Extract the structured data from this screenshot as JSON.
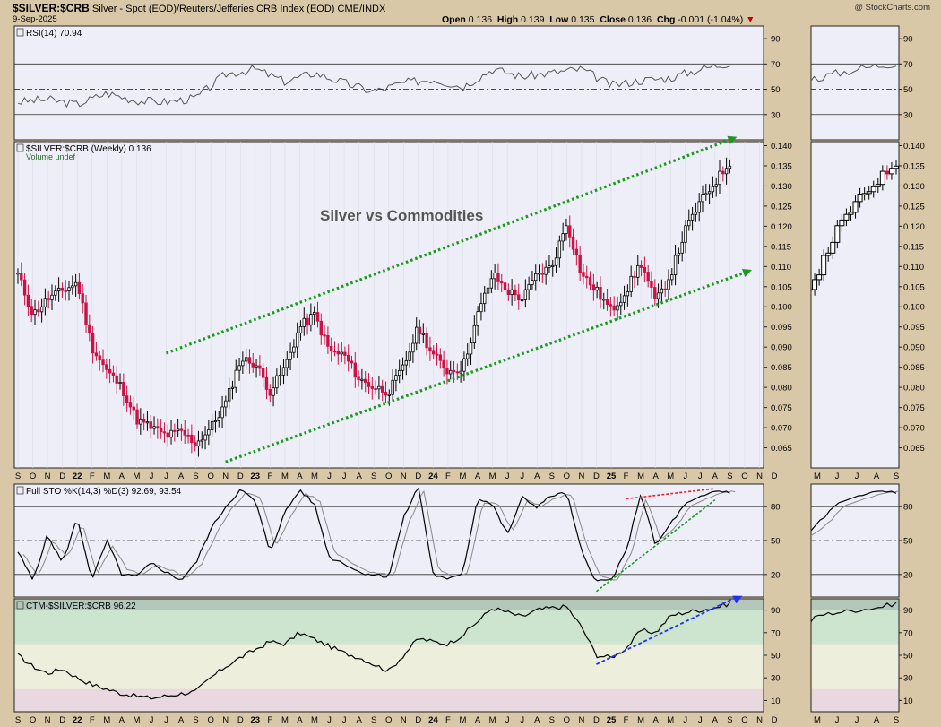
{
  "header": {
    "symbol": "$SILVER:$CRB",
    "description": "Silver - Spot (EOD)/Reuters/Jefferies CRB Index (EOD)  CME/INDX",
    "date": "9-Sep-2025",
    "open_label": "Open",
    "open": "0.136",
    "high_label": "High",
    "high": "0.139",
    "low_label": "Low",
    "low": "0.135",
    "close_label": "Close",
    "close": "0.136",
    "chg_label": "Chg",
    "chg": "-0.001 (-1.04%)",
    "brand": "@ StockCharts.com"
  },
  "colors": {
    "background": "#d9c8a8",
    "panel": "#eeeef8",
    "up": "#000000",
    "down": "#cc1144",
    "channel": "#1a9a1a",
    "red_trend": "#ee2222",
    "blue_trend": "#2233ee"
  },
  "x_labels": [
    "S",
    "O",
    "N",
    "D",
    "22",
    "F",
    "M",
    "A",
    "M",
    "J",
    "J",
    "A",
    "S",
    "O",
    "N",
    "D",
    "23",
    "F",
    "M",
    "A",
    "M",
    "J",
    "J",
    "A",
    "S",
    "O",
    "N",
    "D",
    "24",
    "F",
    "M",
    "A",
    "M",
    "J",
    "J",
    "A",
    "S",
    "O",
    "N",
    "D",
    "25",
    "F",
    "M",
    "A",
    "M",
    "J",
    "J",
    "A",
    "S",
    "O",
    "N",
    "D"
  ],
  "x_labels_right": [
    "M",
    "J",
    "J",
    "A",
    "S"
  ],
  "chart_data": [
    {
      "type": "line",
      "panel": "rsi",
      "legend": "RSI(14) 70.94",
      "ylim": [
        10,
        100
      ],
      "ticks": [
        30,
        50,
        70,
        90
      ],
      "ref_lines": [
        30,
        50,
        70
      ],
      "x": [
        "Sep-21",
        "Nov-21",
        "Jan-22",
        "Mar-22",
        "May-22",
        "Jul-22",
        "Sep-22",
        "Nov-22",
        "Jan-23",
        "Mar-23",
        "May-23",
        "Jul-23",
        "Sep-23",
        "Nov-23",
        "Jan-24",
        "Mar-24",
        "May-24",
        "Jul-24",
        "Sep-24",
        "Nov-24",
        "Jan-25",
        "Mar-25",
        "May-25",
        "Jul-25",
        "Sep-25"
      ],
      "values": [
        40,
        42,
        38,
        47,
        41,
        40,
        43,
        62,
        66,
        56,
        63,
        55,
        48,
        55,
        58,
        52,
        66,
        60,
        63,
        66,
        53,
        57,
        59,
        66,
        71
      ]
    },
    {
      "type": "candlestick",
      "panel": "price",
      "legend": "$SILVER:$CRB (Weekly) 0.136",
      "legend2": "Volume undef",
      "annotation": "Silver vs Commodities",
      "ylim": [
        0.06,
        0.141
      ],
      "ticks": [
        0.065,
        0.07,
        0.075,
        0.08,
        0.085,
        0.09,
        0.095,
        0.1,
        0.105,
        0.11,
        0.115,
        0.12,
        0.125,
        0.13,
        0.135,
        0.14
      ],
      "tick_labels": [
        "0.065",
        "0.070",
        "0.075",
        "0.080",
        "0.085",
        "0.090",
        "0.095",
        "0.100",
        "0.105",
        "0.110",
        "0.115",
        "0.120",
        "0.125",
        "0.130",
        "0.135",
        "0.140"
      ],
      "path_x": [
        "Sep-21",
        "Oct-21",
        "Nov-21",
        "Dec-21",
        "Jan-22",
        "Feb-22",
        "Mar-22",
        "Apr-22",
        "May-22",
        "Jun-22",
        "Jul-22",
        "Aug-22",
        "Sep-22",
        "Oct-22",
        "Nov-22",
        "Dec-22",
        "Jan-23",
        "Feb-23",
        "Mar-23",
        "Apr-23",
        "May-23",
        "Jun-23",
        "Jul-23",
        "Aug-23",
        "Sep-23",
        "Oct-23",
        "Nov-23",
        "Dec-23",
        "Jan-24",
        "Feb-24",
        "Mar-24",
        "Apr-24",
        "May-24",
        "Jun-24",
        "Jul-24",
        "Aug-24",
        "Sep-24",
        "Oct-24",
        "Nov-24",
        "Dec-24",
        "Jan-25",
        "Feb-25",
        "Mar-25",
        "Apr-25",
        "May-25",
        "Jun-25",
        "Jul-25",
        "Aug-25",
        "Sep-25"
      ],
      "path_close": [
        0.108,
        0.098,
        0.102,
        0.104,
        0.106,
        0.09,
        0.084,
        0.08,
        0.072,
        0.07,
        0.068,
        0.069,
        0.066,
        0.07,
        0.076,
        0.087,
        0.086,
        0.079,
        0.085,
        0.095,
        0.098,
        0.089,
        0.088,
        0.082,
        0.08,
        0.079,
        0.085,
        0.095,
        0.088,
        0.084,
        0.085,
        0.098,
        0.108,
        0.104,
        0.102,
        0.108,
        0.11,
        0.121,
        0.108,
        0.104,
        0.099,
        0.104,
        0.111,
        0.101,
        0.108,
        0.119,
        0.126,
        0.131,
        0.136
      ],
      "trendlines": [
        {
          "name": "upper-channel",
          "from": [
            "Jul-22",
            0.0885
          ],
          "to": [
            "Sep-25",
            0.1415
          ]
        },
        {
          "name": "lower-channel",
          "from": [
            "Nov-22",
            0.0615
          ],
          "to": [
            "Oct-25",
            0.1085
          ]
        }
      ]
    },
    {
      "type": "line",
      "panel": "stochastic",
      "legend": "Full STO %K(14,3) %D(3) 92.69, 93.54",
      "ylim": [
        0,
        100
      ],
      "ticks": [
        20,
        50,
        80
      ],
      "ref_lines": [
        20,
        50,
        80
      ],
      "x": [
        "Sep-21",
        "Oct-21",
        "Nov-21",
        "Dec-21",
        "Jan-22",
        "Feb-22",
        "Mar-22",
        "Apr-22",
        "May-22",
        "Jun-22",
        "Jul-22",
        "Aug-22",
        "Sep-22",
        "Oct-22",
        "Nov-22",
        "Dec-22",
        "Jan-23",
        "Feb-23",
        "Mar-23",
        "Apr-23",
        "May-23",
        "Jun-23",
        "Jul-23",
        "Aug-23",
        "Sep-23",
        "Oct-23",
        "Nov-23",
        "Dec-23",
        "Jan-24",
        "Feb-24",
        "Mar-24",
        "Apr-24",
        "May-24",
        "Jun-24",
        "Jul-24",
        "Aug-24",
        "Sep-24",
        "Oct-24",
        "Nov-24",
        "Dec-24",
        "Jan-25",
        "Feb-25",
        "Mar-25",
        "Apr-25",
        "May-25",
        "Jun-25",
        "Jul-25",
        "Aug-25",
        "Sep-25"
      ],
      "series": [
        {
          "name": "%K",
          "values": [
            40,
            15,
            55,
            30,
            70,
            15,
            50,
            20,
            18,
            30,
            22,
            15,
            30,
            60,
            80,
            95,
            85,
            40,
            75,
            95,
            82,
            35,
            30,
            22,
            20,
            18,
            70,
            98,
            20,
            15,
            22,
            88,
            82,
            55,
            88,
            80,
            90,
            92,
            40,
            14,
            15,
            40,
            92,
            45,
            65,
            82,
            88,
            94,
            93
          ]
        },
        {
          "name": "%D",
          "values": [
            38,
            18,
            50,
            35,
            65,
            20,
            45,
            25,
            19,
            28,
            24,
            17,
            28,
            55,
            78,
            92,
            88,
            45,
            70,
            92,
            85,
            40,
            32,
            24,
            21,
            19,
            65,
            95,
            25,
            17,
            22,
            84,
            83,
            58,
            85,
            81,
            88,
            91,
            45,
            18,
            14,
            38,
            88,
            50,
            62,
            80,
            86,
            92,
            94
          ]
        }
      ],
      "trendlines": [
        {
          "name": "red-trend",
          "from": [
            "Feb-25",
            87
          ],
          "to": [
            "Aug-25",
            96
          ]
        },
        {
          "name": "green-trend",
          "from": [
            "Dec-24",
            5
          ],
          "to": [
            "Aug-25",
            86
          ]
        }
      ]
    },
    {
      "type": "line",
      "panel": "ctm",
      "legend": "CTM-$SILVER:$CRB 96.22",
      "ylim": [
        0,
        100
      ],
      "ticks": [
        10,
        30,
        50,
        70,
        90
      ],
      "bands": [
        [
          0,
          20,
          "#ead8e0"
        ],
        [
          20,
          60,
          "#eeeedd"
        ],
        [
          60,
          90,
          "#cde5cf"
        ],
        [
          90,
          100,
          "#b3c8ba"
        ]
      ],
      "x": [
        "Sep-21",
        "Oct-21",
        "Nov-21",
        "Dec-21",
        "Jan-22",
        "Feb-22",
        "Mar-22",
        "Apr-22",
        "May-22",
        "Jun-22",
        "Jul-22",
        "Aug-22",
        "Sep-22",
        "Oct-22",
        "Nov-22",
        "Dec-22",
        "Jan-23",
        "Feb-23",
        "Mar-23",
        "Apr-23",
        "May-23",
        "Jun-23",
        "Jul-23",
        "Aug-23",
        "Sep-23",
        "Oct-23",
        "Nov-23",
        "Dec-23",
        "Jan-24",
        "Feb-24",
        "Mar-24",
        "Apr-24",
        "May-24",
        "Jun-24",
        "Jul-24",
        "Aug-24",
        "Sep-24",
        "Oct-24",
        "Nov-24",
        "Dec-24",
        "Jan-25",
        "Feb-25",
        "Mar-25",
        "Apr-25",
        "May-25",
        "Jun-25",
        "Jul-25",
        "Aug-25",
        "Sep-25"
      ],
      "values": [
        50,
        40,
        34,
        38,
        30,
        24,
        20,
        16,
        14,
        12,
        14,
        16,
        18,
        30,
        40,
        48,
        55,
        62,
        60,
        70,
        64,
        58,
        52,
        48,
        42,
        36,
        50,
        65,
        62,
        60,
        68,
        80,
        92,
        88,
        84,
        90,
        92,
        93,
        75,
        50,
        48,
        56,
        72,
        70,
        85,
        88,
        90,
        92,
        96
      ],
      "trendlines": [
        {
          "name": "blue-trend",
          "from": [
            "Dec-24",
            42
          ],
          "to": [
            "Sep-25",
            97
          ]
        }
      ]
    }
  ]
}
